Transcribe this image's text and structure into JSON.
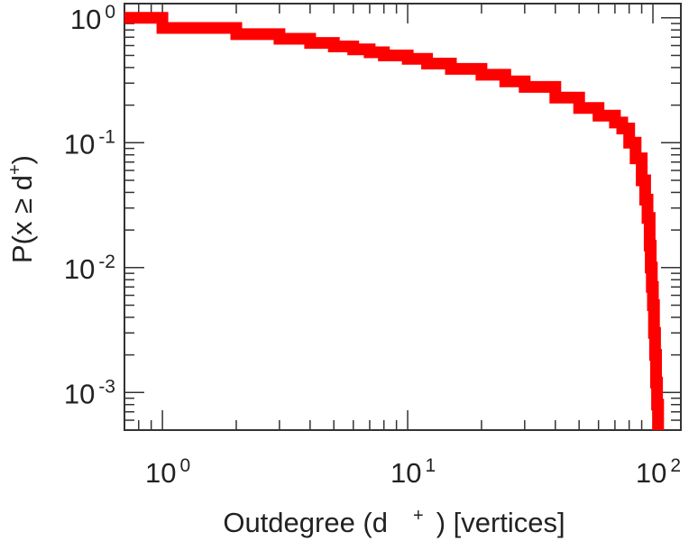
{
  "chart_data": {
    "type": "line",
    "title": "",
    "xlabel": {
      "main": "Outdegree (d",
      "sup": "+",
      "after": ") [vertices]"
    },
    "ylabel": {
      "pre": "P(x ≥ d",
      "sup": "+",
      "post": ")"
    },
    "xscale": "log",
    "yscale": "log",
    "xlim": [
      0.7,
      130
    ],
    "ylim": [
      0.0005,
      1.3
    ],
    "x_ticks": [
      {
        "value": 1,
        "base": "10",
        "exp": "0"
      },
      {
        "value": 10,
        "base": "10",
        "exp": "1"
      },
      {
        "value": 100,
        "base": "10",
        "exp": "2"
      }
    ],
    "y_ticks": [
      {
        "value": 1,
        "base": "10",
        "exp": "0"
      },
      {
        "value": 0.1,
        "base": "10",
        "exp": "-1"
      },
      {
        "value": 0.01,
        "base": "10",
        "exp": "-2"
      },
      {
        "value": 0.001,
        "base": "10",
        "exp": "-3"
      }
    ],
    "grid": false,
    "legend": "none",
    "series": [
      {
        "color": "#ff0000",
        "step": true,
        "x": [
          0.7,
          1,
          2,
          3,
          4,
          5,
          6,
          7,
          8,
          10,
          12,
          15,
          20,
          25,
          30,
          40,
          50,
          60,
          70,
          75,
          80,
          85,
          90,
          93,
          95,
          97,
          98,
          99,
          100,
          101,
          102,
          103,
          104,
          105
        ],
        "y": [
          1.0,
          0.83,
          0.74,
          0.68,
          0.63,
          0.59,
          0.56,
          0.53,
          0.5,
          0.47,
          0.43,
          0.39,
          0.35,
          0.31,
          0.28,
          0.23,
          0.19,
          0.165,
          0.145,
          0.13,
          0.1,
          0.075,
          0.05,
          0.035,
          0.025,
          0.015,
          0.01,
          0.007,
          0.005,
          0.003,
          0.002,
          0.0012,
          0.0008,
          0.0005
        ]
      }
    ]
  }
}
